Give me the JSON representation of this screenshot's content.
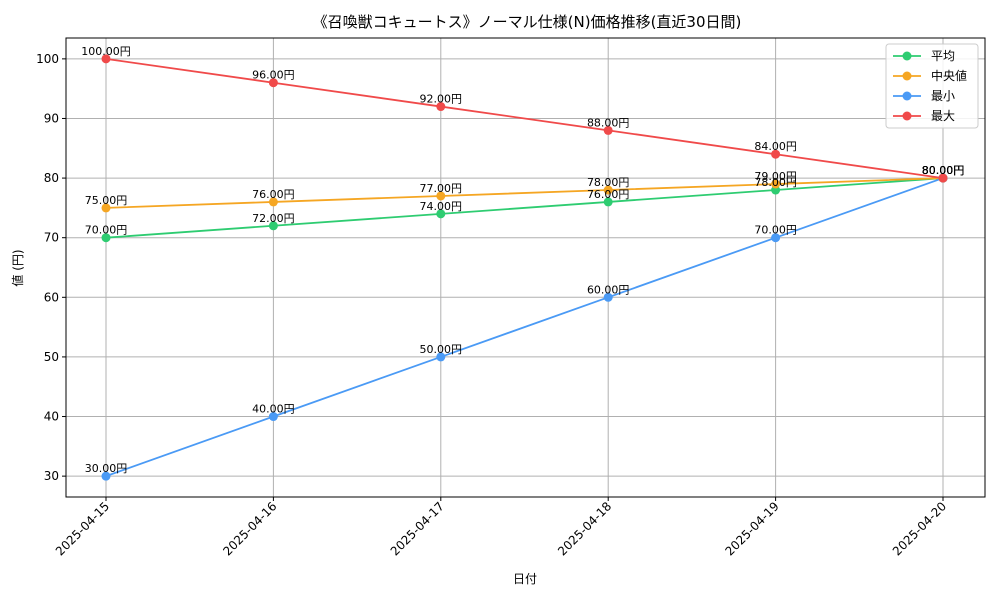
{
  "chart_data": {
    "type": "line",
    "title": "《召喚獣コキュートス》ノーマル仕様(N)価格推移(直近30日間)",
    "xlabel": "日付",
    "ylabel": "値 (円)",
    "categories": [
      "2025-04-15",
      "2025-04-16",
      "2025-04-17",
      "2025-04-18",
      "2025-04-19",
      "2025-04-20"
    ],
    "ylim": [
      26.5,
      103.5
    ],
    "yticks": [
      30,
      40,
      50,
      60,
      70,
      80,
      90,
      100
    ],
    "grid": true,
    "legend_position": "top-right",
    "value_suffix": "円",
    "series": [
      {
        "name": "平均",
        "color": "#2ecc71",
        "values": [
          70,
          72,
          74,
          76,
          78,
          80
        ]
      },
      {
        "name": "中央値",
        "color": "#f5a623",
        "values": [
          75,
          76,
          77,
          78,
          79,
          80
        ]
      },
      {
        "name": "最小",
        "color": "#4a9af5",
        "values": [
          30,
          40,
          50,
          60,
          70,
          80
        ]
      },
      {
        "name": "最大",
        "color": "#f04a4a",
        "values": [
          100,
          96,
          92,
          88,
          84,
          80
        ]
      }
    ]
  }
}
